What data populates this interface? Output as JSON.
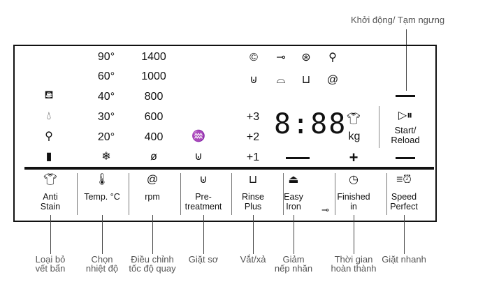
{
  "callout_top": "Khởi động/ Tạm ngưng",
  "temps": [
    "90°",
    "60°",
    "40°",
    "30°",
    "20°"
  ],
  "rpms": [
    "1400",
    "1000",
    "800",
    "600",
    "400"
  ],
  "plus_levels": [
    "+3",
    "+2",
    "+1"
  ],
  "display": {
    "digits": "8:88",
    "unit": "kg",
    "minus": "—",
    "plus": "+"
  },
  "start": {
    "icon": "play-pause-icon",
    "label_line1": "Start/",
    "label_line2": "Reload"
  },
  "buttons": [
    {
      "icon": "shirt-stain-icon",
      "line1": "Anti",
      "line2": "Stain",
      "caption1": "Loại bỏ",
      "caption2": "vết bẩn"
    },
    {
      "icon": "thermometer-icon",
      "line1": "Temp. °C",
      "line2": "",
      "caption1": "Chọn",
      "caption2": "nhiệt độ"
    },
    {
      "icon": "spin-icon",
      "line1": "rpm",
      "line2": "",
      "caption1": "Điều chỉnh",
      "caption2": "tốc độ quay"
    },
    {
      "icon": "prewash-icon",
      "line1": "Pre-",
      "line2": "treatment",
      "caption1": "Giặt sơ",
      "caption2": ""
    },
    {
      "icon": "rinse-plus-icon",
      "line1": "Rinse",
      "line2": "Plus",
      "caption1": "Vắt/xả",
      "caption2": ""
    },
    {
      "icon": "iron-icon",
      "line1": "Easy",
      "line2": "Iron",
      "caption1": "Giảm",
      "caption2": "nếp nhăn"
    },
    {
      "icon": "clock-icon",
      "line1": "Finished",
      "line2": "in",
      "caption1": "Thời gian",
      "caption2": "hoàn thành"
    },
    {
      "icon": "speed-clock-icon",
      "line1": "Speed",
      "line2": "Perfect",
      "caption1": "Giặt nhanh",
      "caption2": ""
    }
  ]
}
